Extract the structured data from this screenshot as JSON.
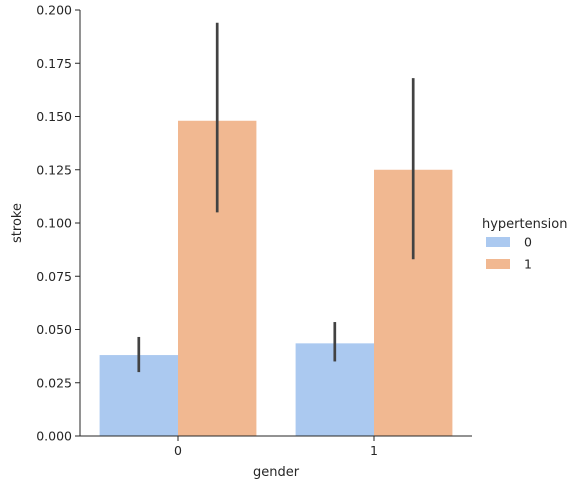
{
  "chart_data": {
    "type": "bar",
    "xlabel": "gender",
    "ylabel": "stroke",
    "categories": [
      "0",
      "1"
    ],
    "ylim": [
      0,
      0.2
    ],
    "yticks": [
      "0.000",
      "0.025",
      "0.050",
      "0.075",
      "0.100",
      "0.125",
      "0.150",
      "0.175",
      "0.200"
    ],
    "grid": false,
    "legend": {
      "title": "hypertension",
      "placement": "right"
    },
    "series": [
      {
        "name": "0",
        "color": "#abc9f0",
        "values": [
          0.038,
          0.0435
        ],
        "error_low": [
          0.03,
          0.035
        ],
        "error_high": [
          0.0465,
          0.0535
        ]
      },
      {
        "name": "1",
        "color": "#f1b891",
        "values": [
          0.148,
          0.125
        ],
        "error_low": [
          0.105,
          0.083
        ],
        "error_high": [
          0.194,
          0.168
        ]
      }
    ]
  }
}
